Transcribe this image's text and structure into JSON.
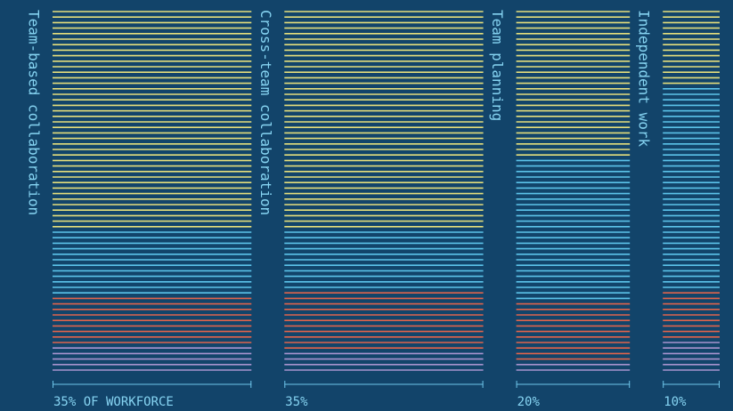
{
  "chart_data": {
    "type": "marimekko-stripes",
    "categories": [
      "Team-based collaboration",
      "Cross-team collaboration",
      "Team planning",
      "Independent work"
    ],
    "values": [
      35,
      35,
      20,
      10
    ],
    "value_labels": [
      "35% OF WORKFORCE",
      "35%",
      "20%",
      "10%"
    ],
    "series": [
      {
        "color": "#e6df7c",
        "values": [
          60,
          60,
          40,
          20
        ]
      },
      {
        "color": "#5cc3ea",
        "values": [
          18,
          16,
          40,
          56
        ]
      },
      {
        "color": "#e0644c",
        "values": [
          14,
          18,
          16,
          14
        ]
      },
      {
        "color": "#a893cf",
        "values": [
          8,
          6,
          4,
          10
        ]
      }
    ]
  }
}
